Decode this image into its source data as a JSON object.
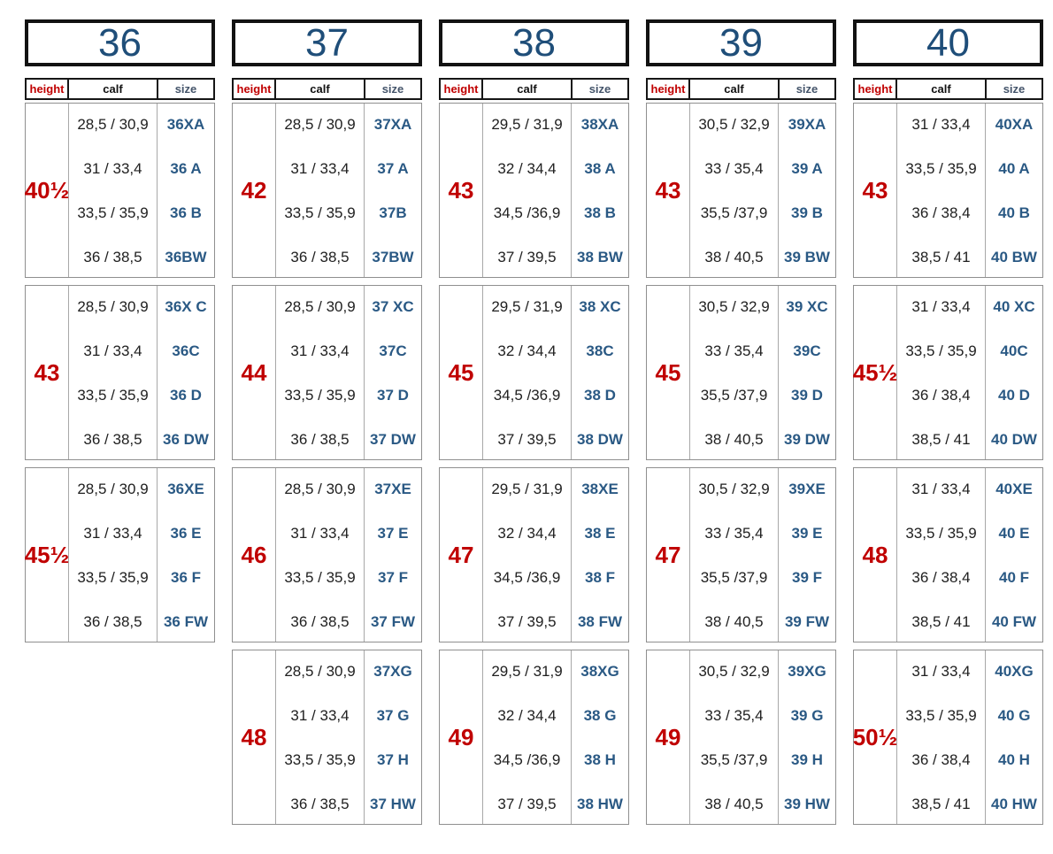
{
  "subheader": {
    "height": "height",
    "calf": "calf",
    "size": "size"
  },
  "colors": {
    "group_header_blue": "#1F4E79",
    "size_code_blue": "#2A5984",
    "height_red": "#C00000",
    "subheader_size_slate": "#44546A"
  },
  "columns": [
    {
      "size_group": "36",
      "blocks": [
        {
          "height": "40½",
          "rows": [
            {
              "calf": "28,5 / 30,9",
              "size": "36XA"
            },
            {
              "calf": "31 / 33,4",
              "size": "36 A"
            },
            {
              "calf": "33,5 / 35,9",
              "size": "36 B"
            },
            {
              "calf": "36 / 38,5",
              "size": "36BW"
            }
          ]
        },
        {
          "height": "43",
          "rows": [
            {
              "calf": "28,5 / 30,9",
              "size": "36X C"
            },
            {
              "calf": "31 / 33,4",
              "size": "36C"
            },
            {
              "calf": "33,5 / 35,9",
              "size": "36 D"
            },
            {
              "calf": "36 / 38,5",
              "size": "36 DW"
            }
          ]
        },
        {
          "height": "45½",
          "rows": [
            {
              "calf": "28,5 / 30,9",
              "size": "36XE"
            },
            {
              "calf": "31 / 33,4",
              "size": "36 E"
            },
            {
              "calf": "33,5 / 35,9",
              "size": "36 F"
            },
            {
              "calf": "36 / 38,5",
              "size": "36 FW"
            }
          ]
        }
      ]
    },
    {
      "size_group": "37",
      "blocks": [
        {
          "height": "42",
          "rows": [
            {
              "calf": "28,5 / 30,9",
              "size": "37XA"
            },
            {
              "calf": "31 / 33,4",
              "size": "37 A"
            },
            {
              "calf": "33,5 / 35,9",
              "size": "37B"
            },
            {
              "calf": "36 / 38,5",
              "size": "37BW"
            }
          ]
        },
        {
          "height": "44",
          "rows": [
            {
              "calf": "28,5 / 30,9",
              "size": "37 XC"
            },
            {
              "calf": "31 / 33,4",
              "size": "37C"
            },
            {
              "calf": "33,5 / 35,9",
              "size": "37 D"
            },
            {
              "calf": "36 / 38,5",
              "size": "37 DW"
            }
          ]
        },
        {
          "height": "46",
          "rows": [
            {
              "calf": "28,5 / 30,9",
              "size": "37XE"
            },
            {
              "calf": "31 / 33,4",
              "size": "37 E"
            },
            {
              "calf": "33,5 / 35,9",
              "size": "37 F"
            },
            {
              "calf": "36 / 38,5",
              "size": "37 FW"
            }
          ]
        },
        {
          "height": "48",
          "rows": [
            {
              "calf": "28,5 / 30,9",
              "size": "37XG"
            },
            {
              "calf": "31 / 33,4",
              "size": "37 G"
            },
            {
              "calf": "33,5 / 35,9",
              "size": "37 H"
            },
            {
              "calf": "36 / 38,5",
              "size": "37 HW"
            }
          ]
        }
      ]
    },
    {
      "size_group": "38",
      "blocks": [
        {
          "height": "43",
          "rows": [
            {
              "calf": "29,5 / 31,9",
              "size": "38XA"
            },
            {
              "calf": "32 / 34,4",
              "size": "38 A"
            },
            {
              "calf": "34,5 /36,9",
              "size": "38 B"
            },
            {
              "calf": "37 / 39,5",
              "size": "38 BW"
            }
          ]
        },
        {
          "height": "45",
          "rows": [
            {
              "calf": "29,5 / 31,9",
              "size": "38 XC"
            },
            {
              "calf": "32 / 34,4",
              "size": "38C"
            },
            {
              "calf": "34,5 /36,9",
              "size": "38 D"
            },
            {
              "calf": "37 / 39,5",
              "size": "38 DW"
            }
          ]
        },
        {
          "height": "47",
          "rows": [
            {
              "calf": "29,5 / 31,9",
              "size": "38XE"
            },
            {
              "calf": "32 / 34,4",
              "size": "38 E"
            },
            {
              "calf": "34,5 /36,9",
              "size": "38 F"
            },
            {
              "calf": "37 / 39,5",
              "size": "38 FW"
            }
          ]
        },
        {
          "height": "49",
          "rows": [
            {
              "calf": "29,5 / 31,9",
              "size": "38XG"
            },
            {
              "calf": "32 / 34,4",
              "size": "38 G"
            },
            {
              "calf": "34,5 /36,9",
              "size": "38 H"
            },
            {
              "calf": "37 / 39,5",
              "size": "38 HW"
            }
          ]
        }
      ]
    },
    {
      "size_group": "39",
      "blocks": [
        {
          "height": "43",
          "rows": [
            {
              "calf": "30,5 / 32,9",
              "size": "39XA"
            },
            {
              "calf": "33 / 35,4",
              "size": "39 A"
            },
            {
              "calf": "35,5 /37,9",
              "size": "39 B"
            },
            {
              "calf": "38 / 40,5",
              "size": "39 BW"
            }
          ]
        },
        {
          "height": "45",
          "rows": [
            {
              "calf": "30,5 / 32,9",
              "size": "39 XC"
            },
            {
              "calf": "33 / 35,4",
              "size": "39C"
            },
            {
              "calf": "35,5 /37,9",
              "size": "39 D"
            },
            {
              "calf": "38 / 40,5",
              "size": "39 DW"
            }
          ]
        },
        {
          "height": "47",
          "rows": [
            {
              "calf": "30,5 / 32,9",
              "size": "39XE"
            },
            {
              "calf": "33 / 35,4",
              "size": "39 E"
            },
            {
              "calf": "35,5 /37,9",
              "size": "39 F"
            },
            {
              "calf": "38 / 40,5",
              "size": "39 FW"
            }
          ]
        },
        {
          "height": "49",
          "rows": [
            {
              "calf": "30,5 / 32,9",
              "size": "39XG"
            },
            {
              "calf": "33 / 35,4",
              "size": "39 G"
            },
            {
              "calf": "35,5 /37,9",
              "size": "39 H"
            },
            {
              "calf": "38 / 40,5",
              "size": "39 HW"
            }
          ]
        }
      ]
    },
    {
      "size_group": "40",
      "blocks": [
        {
          "height": "43",
          "rows": [
            {
              "calf": "31 / 33,4",
              "size": "40XA"
            },
            {
              "calf": "33,5 / 35,9",
              "size": "40 A"
            },
            {
              "calf": "36 / 38,4",
              "size": "40 B"
            },
            {
              "calf": "38,5 / 41",
              "size": "40 BW"
            }
          ]
        },
        {
          "height": "45½",
          "rows": [
            {
              "calf": "31 / 33,4",
              "size": "40 XC"
            },
            {
              "calf": "33,5 / 35,9",
              "size": "40C"
            },
            {
              "calf": "36 / 38,4",
              "size": "40 D"
            },
            {
              "calf": "38,5 / 41",
              "size": "40 DW"
            }
          ]
        },
        {
          "height": "48",
          "rows": [
            {
              "calf": "31 / 33,4",
              "size": "40XE"
            },
            {
              "calf": "33,5 / 35,9",
              "size": "40 E"
            },
            {
              "calf": "36 / 38,4",
              "size": "40 F"
            },
            {
              "calf": "38,5 / 41",
              "size": "40 FW"
            }
          ]
        },
        {
          "height": "50½",
          "rows": [
            {
              "calf": "31 / 33,4",
              "size": "40XG"
            },
            {
              "calf": "33,5 / 35,9",
              "size": "40 G"
            },
            {
              "calf": "36 / 38,4",
              "size": "40 H"
            },
            {
              "calf": "38,5 / 41",
              "size": "40 HW"
            }
          ]
        }
      ]
    }
  ]
}
